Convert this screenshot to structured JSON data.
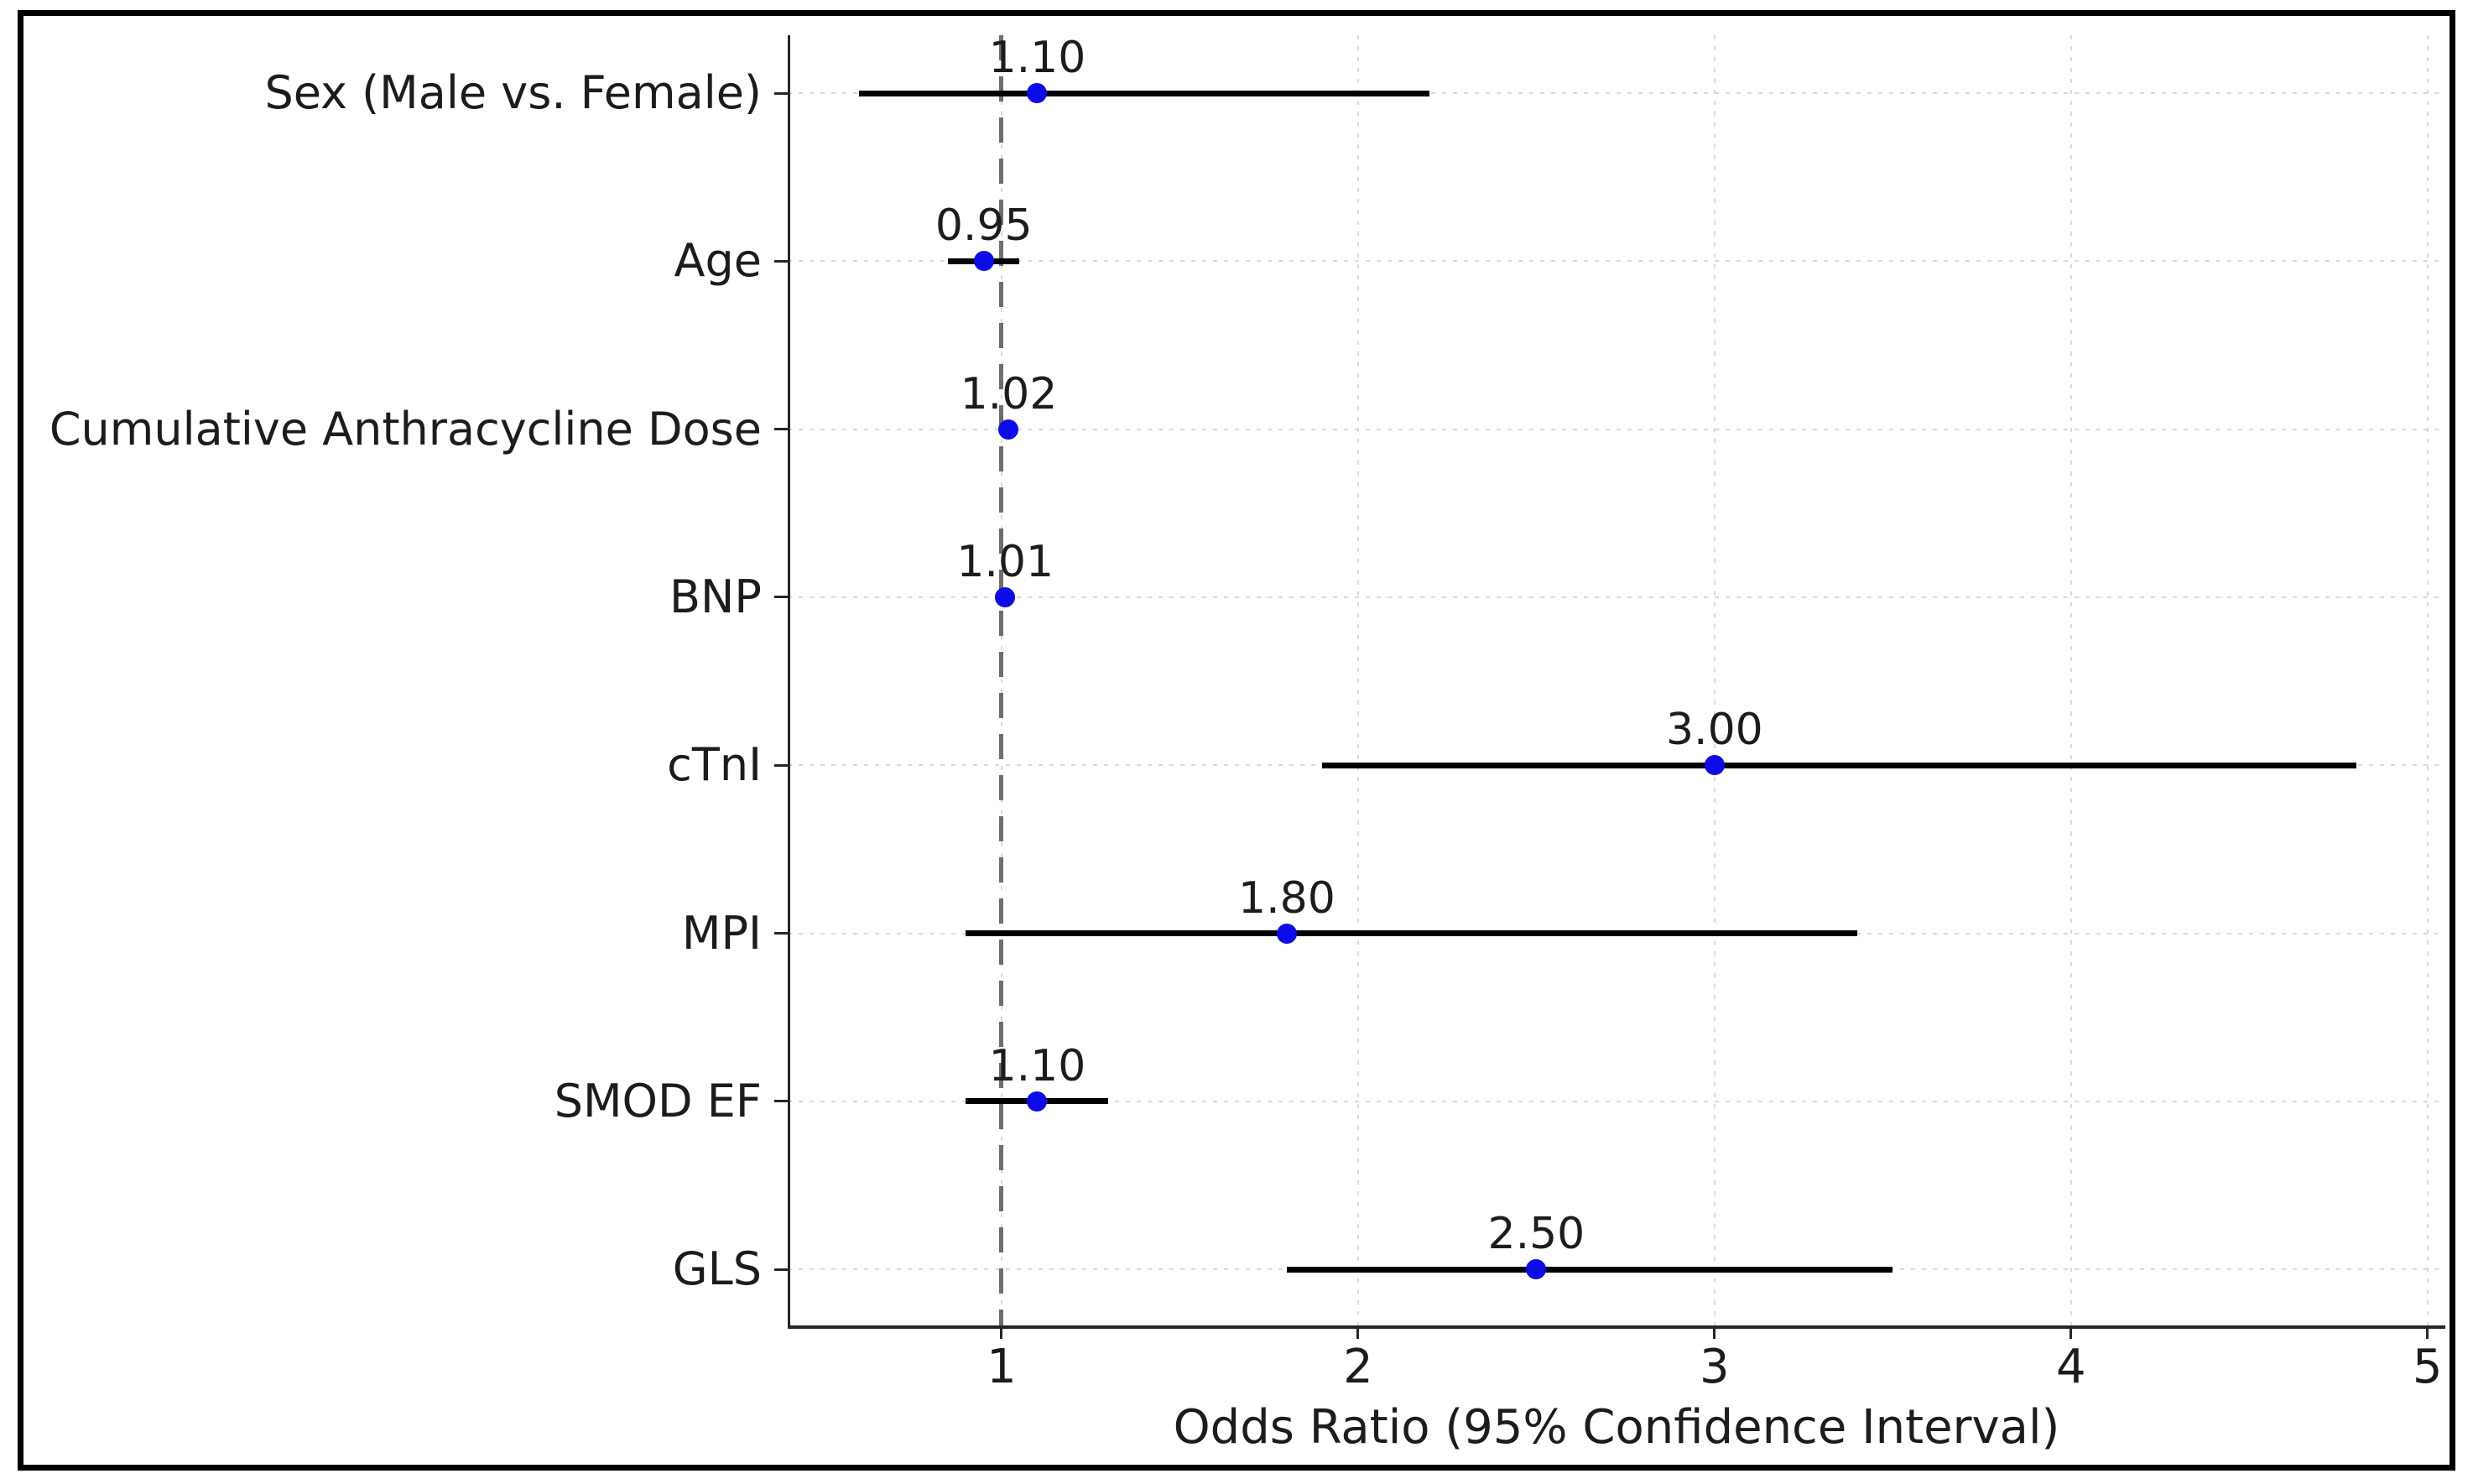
{
  "chart_data": {
    "type": "scatter",
    "subtype": "forest-plot",
    "title": "",
    "xlabel": "Odds Ratio (95% Confidence Interval)",
    "ylabel": "",
    "xlim": [
      0.4,
      5.05
    ],
    "xticks": [
      1,
      2,
      3,
      4,
      5
    ],
    "xtick_labels": [
      "1",
      "2",
      "3",
      "4",
      "5"
    ],
    "reference_line_x": 1,
    "grid": "dotted, both axes",
    "legend": "none",
    "categories": [
      "Sex (Male vs. Female)",
      "Age",
      "Cumulative Anthracycline Dose",
      "BNP",
      "cTnI",
      "MPI",
      "SMOD EF",
      "GLS"
    ],
    "series": [
      {
        "name": "Odds Ratio (95% CI)",
        "points": [
          {
            "label": "Sex (Male vs. Female)",
            "or": 1.1,
            "ci_low": 0.6,
            "ci_high": 2.2,
            "value_label": "1.10"
          },
          {
            "label": "Age",
            "or": 0.95,
            "ci_low": 0.85,
            "ci_high": 1.05,
            "value_label": "0.95"
          },
          {
            "label": "Cumulative Anthracycline Dose",
            "or": 1.02,
            "ci_low": 1.0,
            "ci_high": 1.04,
            "value_label": "1.02"
          },
          {
            "label": "BNP",
            "or": 1.01,
            "ci_low": 1.0,
            "ci_high": 1.02,
            "value_label": "1.01"
          },
          {
            "label": "cTnI",
            "or": 3.0,
            "ci_low": 1.9,
            "ci_high": 4.8,
            "value_label": "3.00"
          },
          {
            "label": "MPI",
            "or": 1.8,
            "ci_low": 0.9,
            "ci_high": 3.4,
            "value_label": "1.80"
          },
          {
            "label": "SMOD EF",
            "or": 1.1,
            "ci_low": 0.9,
            "ci_high": 1.3,
            "value_label": "1.10"
          },
          {
            "label": "GLS",
            "or": 2.5,
            "ci_low": 1.8,
            "ci_high": 3.5,
            "value_label": "2.50"
          }
        ]
      }
    ],
    "colors": {
      "marker": "#0B0BE8",
      "ci_line": "#000000",
      "reference_line": "#6E6E6E",
      "grid": "#D9D9D9",
      "text": "#1C1C1C",
      "spine": "#262626",
      "figure_border": "#000000",
      "background": "#FFFFFF"
    }
  }
}
